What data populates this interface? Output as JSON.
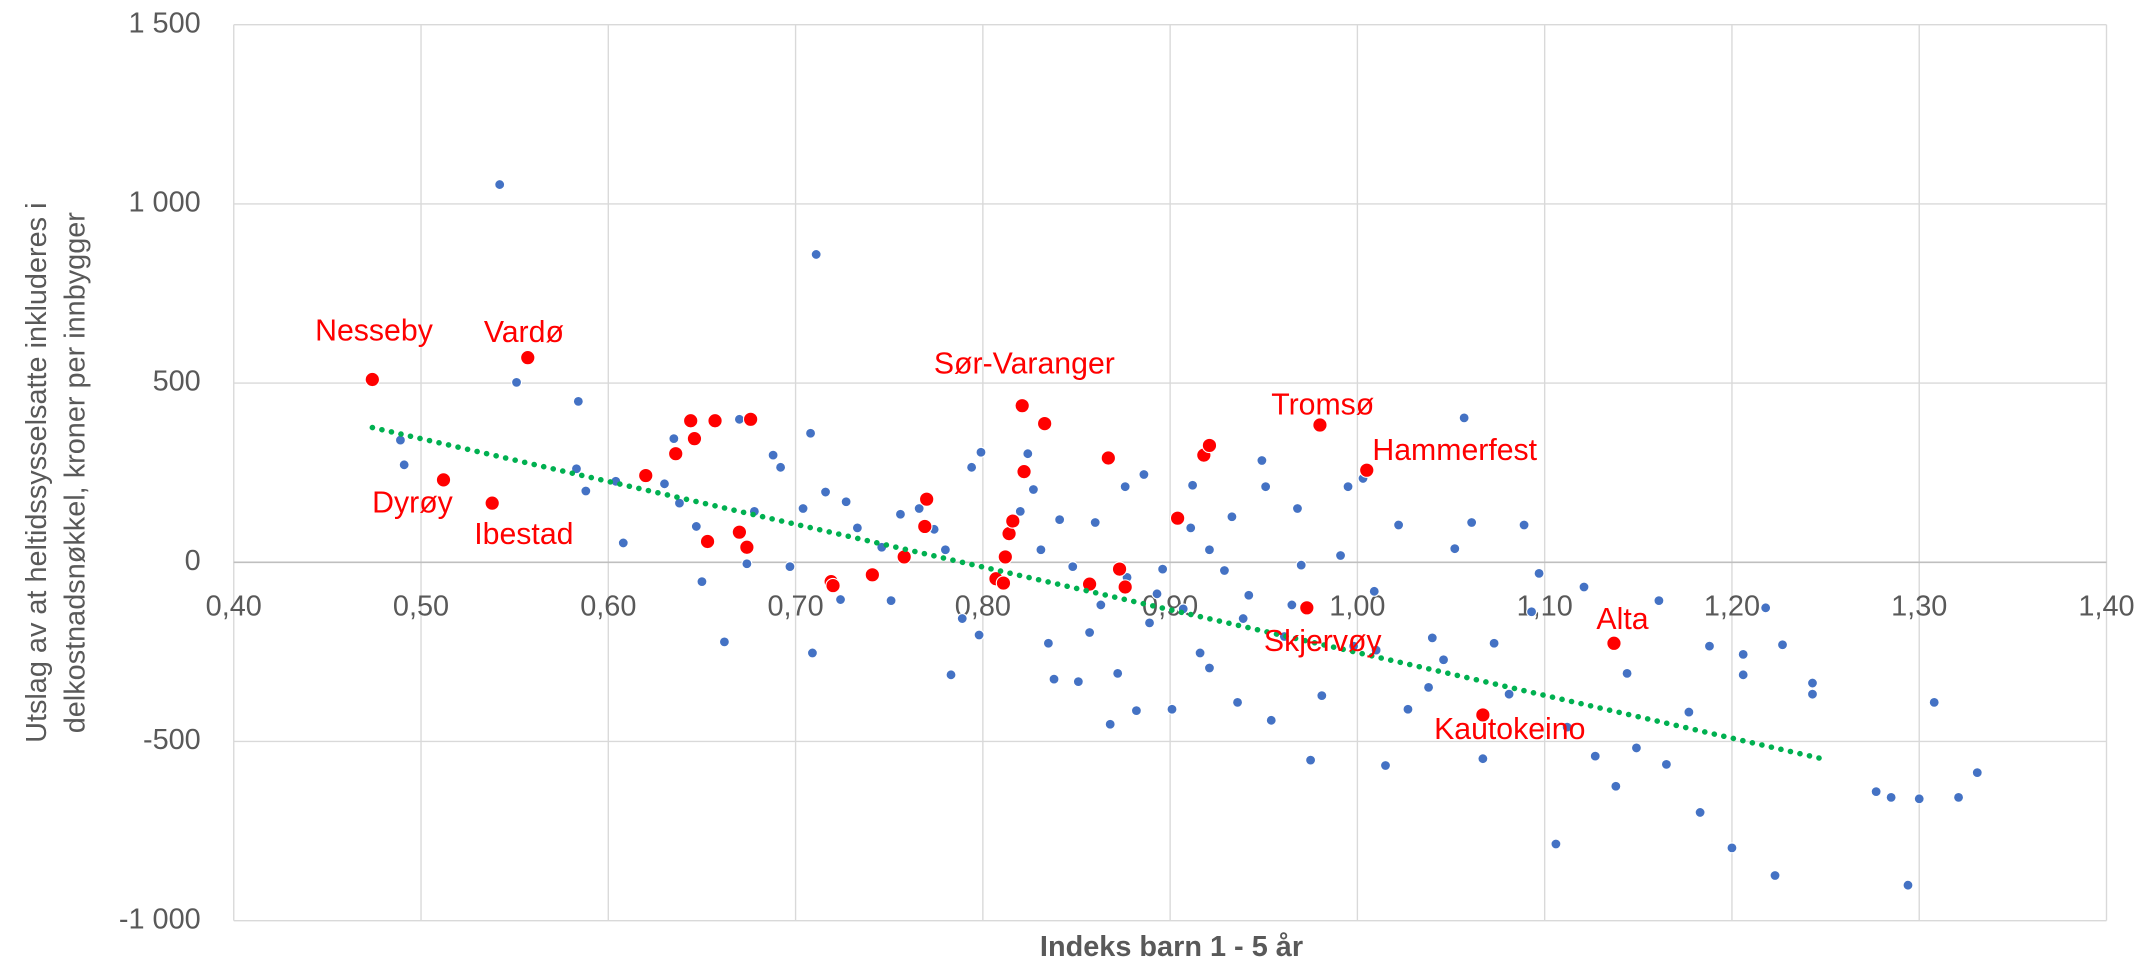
{
  "chart_data": {
    "type": "scatter",
    "xlabel": "Indeks barn 1 - 5 år",
    "ylabel": [
      "Utslag av at heltidssysselsatte inkluderes i",
      "delkostnadsnøkkel, kroner per innbygger"
    ],
    "xlim": [
      0.4,
      1.4
    ],
    "ylim": [
      -1000,
      1500
    ],
    "xticks": [
      {
        "value": 0.4,
        "label": "0,40"
      },
      {
        "value": 0.5,
        "label": "0,50"
      },
      {
        "value": 0.6,
        "label": "0,60"
      },
      {
        "value": 0.7,
        "label": "0,70"
      },
      {
        "value": 0.8,
        "label": "0,80"
      },
      {
        "value": 0.9,
        "label": "0,90"
      },
      {
        "value": 1.0,
        "label": "1,00"
      },
      {
        "value": 1.1,
        "label": "1,10"
      },
      {
        "value": 1.2,
        "label": "1,20"
      },
      {
        "value": 1.3,
        "label": "1,30"
      },
      {
        "value": 1.4,
        "label": "1,40"
      }
    ],
    "yticks": [
      {
        "value": -1000,
        "label": "-1 000"
      },
      -500,
      0,
      500,
      {
        "value": 1000,
        "label": "1 000"
      },
      {
        "value": 1500,
        "label": "1 500"
      }
    ],
    "grid": true,
    "series": [
      {
        "color": "#4472c4",
        "x": [
          0.542,
          0.711,
          0.489,
          0.491,
          0.551,
          0.583,
          0.584,
          0.588,
          0.604,
          0.608,
          0.63,
          0.635,
          0.638,
          0.647,
          0.65,
          0.662,
          0.67,
          0.674,
          0.678,
          0.688,
          0.692,
          0.697,
          0.704,
          0.708,
          0.709,
          0.716,
          0.724,
          0.727,
          0.733,
          0.746,
          0.751,
          0.756,
          0.766,
          0.774,
          0.78,
          0.783,
          0.789,
          0.794,
          0.799,
          0.798,
          0.82,
          0.824,
          0.827,
          0.831,
          0.835,
          0.838,
          0.841,
          0.848,
          0.851,
          0.857,
          0.86,
          0.863,
          0.868,
          0.872,
          0.876,
          0.882,
          0.886,
          0.889,
          0.896,
          0.901,
          0.907,
          0.911,
          0.912,
          0.916,
          0.921,
          0.929,
          0.933,
          0.936,
          0.942,
          0.949,
          0.951,
          0.954,
          0.961,
          0.968,
          0.97,
          0.975,
          0.981,
          0.991,
          0.995,
          1.003,
          1.01,
          1.015,
          1.022,
          1.027,
          1.04,
          1.046,
          1.052,
          1.057,
          1.061,
          1.067,
          1.073,
          1.081,
          1.089,
          1.093,
          1.097,
          1.106,
          1.112,
          1.121,
          1.127,
          1.138,
          1.144,
          1.149,
          1.161,
          1.165,
          1.177,
          1.183,
          1.188,
          1.2,
          1.206,
          1.206,
          1.218,
          1.223,
          1.227,
          1.243,
          1.243,
          1.277,
          1.285,
          1.294,
          1.3,
          1.308,
          1.321,
          1.331,
          0.877,
          0.893,
          0.921,
          0.939,
          0.965,
          0.998,
          1.038,
          1.009
        ],
        "values": [
          1054,
          859,
          341,
          272,
          502,
          261,
          449,
          199,
          226,
          54,
          219,
          345,
          165,
          100,
          -54,
          -222,
          399,
          -4,
          142,
          299,
          265,
          -12,
          150,
          360,
          -253,
          196,
          -104,
          169,
          96,
          42,
          -107,
          134,
          150,
          92,
          35,
          -314,
          -157,
          265,
          307,
          -203,
          142,
          303,
          203,
          35,
          -226,
          -326,
          119,
          -12,
          -333,
          -196,
          111,
          -119,
          -452,
          -310,
          211,
          -414,
          245,
          -169,
          -19,
          -410,
          -130,
          96,
          215,
          -253,
          -295,
          -23,
          127,
          -391,
          -92,
          284,
          211,
          -441,
          -207,
          150,
          -8,
          -552,
          -372,
          19,
          211,
          234,
          -245,
          -567,
          104,
          -410,
          -211,
          -272,
          38,
          403,
          111,
          -548,
          -226,
          -368,
          104,
          -138,
          -31,
          -786,
          -460,
          -69,
          -541,
          -625,
          -310,
          -518,
          -107,
          -564,
          -418,
          -698,
          -234,
          -797,
          -257,
          -314,
          -127,
          -874,
          -230,
          -337,
          -368,
          -640,
          -656,
          -901,
          -660,
          -391,
          -656,
          -587,
          -42,
          -88,
          35,
          -157,
          -119,
          -234,
          -349,
          -81
        ]
      },
      {
        "color": "#ff0000",
        "x": [
          0.474,
          0.557,
          0.512,
          0.538,
          0.62,
          0.636,
          0.644,
          0.646,
          0.657,
          0.676,
          0.653,
          0.67,
          0.674,
          0.719,
          0.72,
          0.741,
          0.758,
          0.769,
          0.77,
          0.807,
          0.811,
          0.812,
          0.814,
          0.816,
          0.821,
          0.822,
          0.833,
          0.857,
          0.867,
          0.873,
          0.876,
          0.904,
          0.918,
          0.921,
          0.973,
          0.98,
          1.005,
          1.067,
          1.137
        ],
        "values": [
          510,
          571,
          230,
          165,
          242,
          303,
          395,
          345,
          395,
          399,
          58,
          84,
          42,
          -54,
          -65,
          -35,
          15,
          100,
          176,
          -46,
          -58,
          15,
          80,
          115,
          437,
          253,
          387,
          -61,
          291,
          -19,
          -69,
          123,
          299,
          326,
          -127,
          383,
          257,
          -426,
          -226
        ]
      },
      {
        "color": "#00b050",
        "style": "dotted",
        "x": [
          0.474,
          1.248
        ],
        "values": [
          376,
          -548
        ]
      }
    ],
    "annotations": [
      "Nesseby",
      "Vardø",
      "Dyrøy",
      "Ibestad",
      "Sør-Varanger",
      "Tromsø",
      "Hammerfest",
      "Skjervøy",
      "Alta",
      "Kautokeino"
    ]
  }
}
